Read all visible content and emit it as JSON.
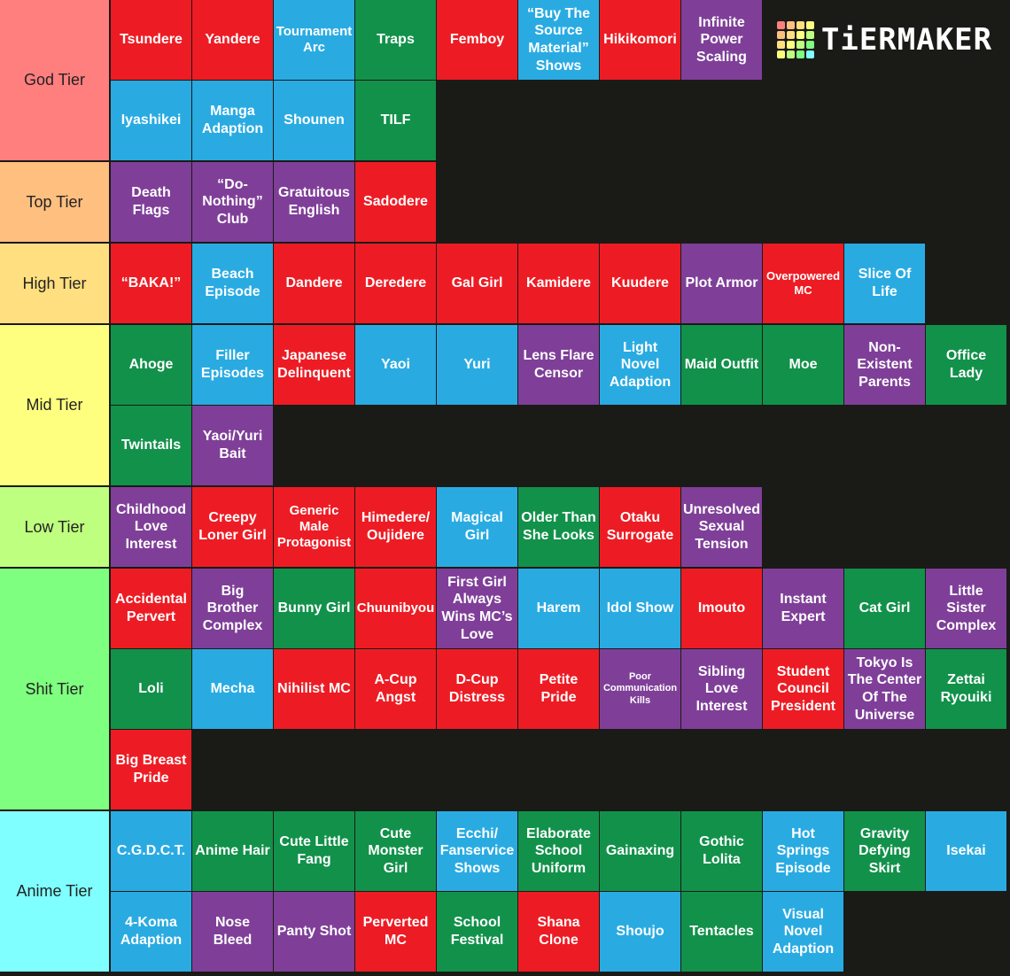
{
  "logo": "TiERMAKER",
  "tiers": [
    {
      "label": "God Tier",
      "color": "#ff7f7f",
      "items": [
        {
          "text": "Tsundere",
          "color": "#ed1c24"
        },
        {
          "text": "Yandere",
          "color": "#ed1c24"
        },
        {
          "text": "Tournament Arc",
          "color": "#29abe2"
        },
        {
          "text": "Traps",
          "color": "#12914a"
        },
        {
          "text": "Femboy",
          "color": "#ed1c24"
        },
        {
          "text": "“Buy The Source Material” Shows",
          "color": "#29abe2"
        },
        {
          "text": "Hikikomori",
          "color": "#ed1c24"
        },
        {
          "text": "Infinite Power Scaling",
          "color": "#7f3f98"
        },
        {
          "text": "Iyashikei",
          "color": "#29abe2"
        },
        {
          "text": "Manga Adaption",
          "color": "#29abe2"
        },
        {
          "text": "Shounen",
          "color": "#29abe2"
        },
        {
          "text": "TILF",
          "color": "#12914a"
        }
      ]
    },
    {
      "label": "Top Tier",
      "color": "#ffbf7f",
      "items": [
        {
          "text": "Death Flags",
          "color": "#7f3f98"
        },
        {
          "text": "“Do-Nothing” Club",
          "color": "#7f3f98"
        },
        {
          "text": "Gratuitous English",
          "color": "#7f3f98"
        },
        {
          "text": "Sadodere",
          "color": "#ed1c24"
        }
      ]
    },
    {
      "label": "High Tier",
      "color": "#ffdf7f",
      "items": [
        {
          "text": "“BAKA!”",
          "color": "#ed1c24"
        },
        {
          "text": "Beach Episode",
          "color": "#29abe2"
        },
        {
          "text": "Dandere",
          "color": "#ed1c24"
        },
        {
          "text": "Deredere",
          "color": "#ed1c24"
        },
        {
          "text": "Gal Girl",
          "color": "#ed1c24"
        },
        {
          "text": "Kamidere",
          "color": "#ed1c24"
        },
        {
          "text": "Kuudere",
          "color": "#ed1c24"
        },
        {
          "text": "Plot Armor",
          "color": "#7f3f98"
        },
        {
          "text": "Overpowered MC",
          "color": "#ed1c24"
        },
        {
          "text": "Slice Of Life",
          "color": "#29abe2"
        }
      ]
    },
    {
      "label": "Mid Tier",
      "color": "#ffff7f",
      "items": [
        {
          "text": "Ahoge",
          "color": "#12914a"
        },
        {
          "text": "Filler Episodes",
          "color": "#29abe2"
        },
        {
          "text": "Japanese Delinquent",
          "color": "#ed1c24"
        },
        {
          "text": "Yaoi",
          "color": "#29abe2"
        },
        {
          "text": "Yuri",
          "color": "#29abe2"
        },
        {
          "text": "Lens Flare Censor",
          "color": "#7f3f98"
        },
        {
          "text": "Light Novel Adaption",
          "color": "#29abe2"
        },
        {
          "text": "Maid Outfit",
          "color": "#12914a"
        },
        {
          "text": "Moe",
          "color": "#12914a"
        },
        {
          "text": "Non-Existent Parents",
          "color": "#7f3f98"
        },
        {
          "text": "Office Lady",
          "color": "#12914a"
        },
        {
          "text": "Twintails",
          "color": "#12914a"
        },
        {
          "text": "Yaoi/Yuri Bait",
          "color": "#7f3f98"
        }
      ]
    },
    {
      "label": "Low Tier",
      "color": "#bfff7f",
      "items": [
        {
          "text": "Childhood Love Interest",
          "color": "#7f3f98"
        },
        {
          "text": "Creepy Loner Girl",
          "color": "#ed1c24"
        },
        {
          "text": "Generic Male Protagonist",
          "color": "#ed1c24"
        },
        {
          "text": "Himedere/ Oujidere",
          "color": "#ed1c24"
        },
        {
          "text": "Magical Girl",
          "color": "#29abe2"
        },
        {
          "text": "Older Than She Looks",
          "color": "#12914a"
        },
        {
          "text": "Otaku Surrogate",
          "color": "#ed1c24"
        },
        {
          "text": "Unresolved Sexual Tension",
          "color": "#7f3f98"
        }
      ]
    },
    {
      "label": "Shit Tier",
      "color": "#7fff7f",
      "items": [
        {
          "text": "Accidental Pervert",
          "color": "#ed1c24"
        },
        {
          "text": "Big Brother Complex",
          "color": "#7f3f98"
        },
        {
          "text": "Bunny Girl",
          "color": "#12914a"
        },
        {
          "text": "Chuunibyou",
          "color": "#ed1c24"
        },
        {
          "text": "First Girl Always Wins MC’s Love",
          "color": "#7f3f98"
        },
        {
          "text": "Harem",
          "color": "#29abe2"
        },
        {
          "text": "Idol Show",
          "color": "#29abe2"
        },
        {
          "text": "Imouto",
          "color": "#ed1c24"
        },
        {
          "text": "Instant Expert",
          "color": "#7f3f98"
        },
        {
          "text": "Cat Girl",
          "color": "#12914a"
        },
        {
          "text": "Little Sister Complex",
          "color": "#7f3f98"
        },
        {
          "text": "Loli",
          "color": "#12914a"
        },
        {
          "text": "Mecha",
          "color": "#29abe2"
        },
        {
          "text": "Nihilist MC",
          "color": "#ed1c24"
        },
        {
          "text": "A-Cup Angst",
          "color": "#ed1c24"
        },
        {
          "text": "D-Cup Distress",
          "color": "#ed1c24"
        },
        {
          "text": "Petite Pride",
          "color": "#ed1c24"
        },
        {
          "text": "Poor Communication Kills",
          "color": "#7f3f98"
        },
        {
          "text": "Sibling Love Interest",
          "color": "#7f3f98"
        },
        {
          "text": "Student Council President",
          "color": "#ed1c24"
        },
        {
          "text": "Tokyo Is The Center Of The Universe",
          "color": "#7f3f98"
        },
        {
          "text": "Zettai Ryouiki",
          "color": "#12914a"
        },
        {
          "text": "Big Breast Pride",
          "color": "#ed1c24"
        }
      ]
    },
    {
      "label": "Anime Tier",
      "color": "#7fffff",
      "items": [
        {
          "text": "C.G.D.C.T.",
          "color": "#29abe2"
        },
        {
          "text": "Anime Hair",
          "color": "#12914a"
        },
        {
          "text": "Cute Little Fang",
          "color": "#12914a"
        },
        {
          "text": "Cute Monster Girl",
          "color": "#12914a"
        },
        {
          "text": "Ecchi/ Fanservice Shows",
          "color": "#29abe2"
        },
        {
          "text": "Elaborate School Uniform",
          "color": "#12914a"
        },
        {
          "text": "Gainaxing",
          "color": "#12914a"
        },
        {
          "text": "Gothic Lolita",
          "color": "#12914a"
        },
        {
          "text": "Hot Springs Episode",
          "color": "#29abe2"
        },
        {
          "text": "Gravity Defying Skirt",
          "color": "#12914a"
        },
        {
          "text": "Isekai",
          "color": "#29abe2"
        },
        {
          "text": "4-Koma Adaption",
          "color": "#29abe2"
        },
        {
          "text": "Nose Bleed",
          "color": "#7f3f98"
        },
        {
          "text": "Panty Shot",
          "color": "#7f3f98"
        },
        {
          "text": "Perverted MC",
          "color": "#ed1c24"
        },
        {
          "text": "School Festival",
          "color": "#12914a"
        },
        {
          "text": "Shana Clone",
          "color": "#ed1c24"
        },
        {
          "text": "Shoujo",
          "color": "#29abe2"
        },
        {
          "text": "Tentacles",
          "color": "#12914a"
        },
        {
          "text": "Visual Novel Adaption",
          "color": "#29abe2"
        }
      ]
    }
  ]
}
